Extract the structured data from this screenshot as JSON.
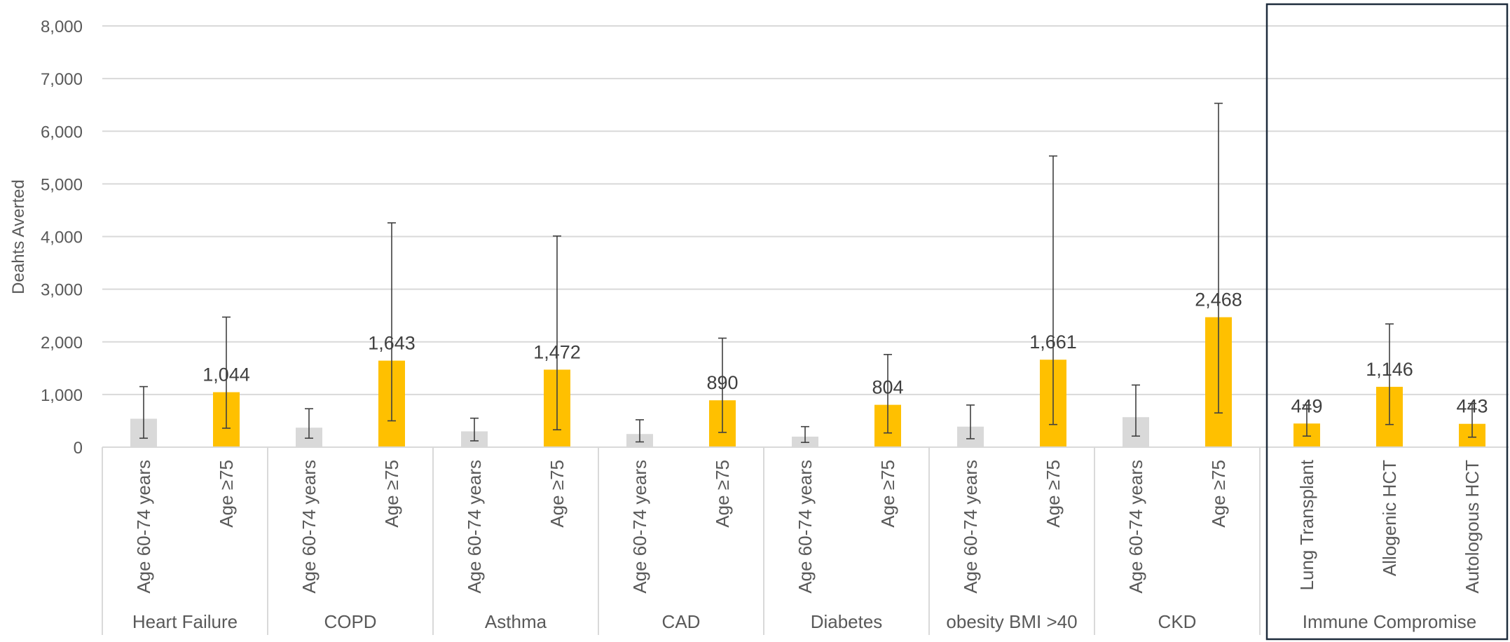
{
  "chart_data": {
    "type": "bar",
    "title": "",
    "ylabel": "Deahts Averted",
    "xlabel": "",
    "ylim": [
      0,
      8000
    ],
    "yticks": [
      0,
      1000,
      2000,
      3000,
      4000,
      5000,
      6000,
      7000,
      8000
    ],
    "ytick_labels": [
      "0",
      "1,000",
      "2,000",
      "3,000",
      "4,000",
      "5,000",
      "6,000",
      "7,000",
      "8,000"
    ],
    "grid": true,
    "legend": "none",
    "colors": {
      "age_60_74": "#d9d9d9",
      "age_75": "#ffc000",
      "highlight_box": "#1f2d3d"
    },
    "groups": [
      {
        "name": "Heart Failure",
        "highlighted": false,
        "bars": [
          {
            "label": "Age 60-74 years",
            "value": 540,
            "err_low": 170,
            "err_high": 1150,
            "color": "#d9d9d9",
            "data_label": ""
          },
          {
            "label": "Age ≥75",
            "value": 1044,
            "err_low": 360,
            "err_high": 2470,
            "color": "#ffc000",
            "data_label": "1,044"
          }
        ]
      },
      {
        "name": "COPD",
        "highlighted": false,
        "bars": [
          {
            "label": "Age 60-74 years",
            "value": 370,
            "err_low": 170,
            "err_high": 730,
            "color": "#d9d9d9",
            "data_label": ""
          },
          {
            "label": "Age ≥75",
            "value": 1643,
            "err_low": 500,
            "err_high": 4260,
            "color": "#ffc000",
            "data_label": "1,643"
          }
        ]
      },
      {
        "name": "Asthma",
        "highlighted": false,
        "bars": [
          {
            "label": "Age 60-74 years",
            "value": 300,
            "err_low": 120,
            "err_high": 550,
            "color": "#d9d9d9",
            "data_label": ""
          },
          {
            "label": "Age ≥75",
            "value": 1472,
            "err_low": 330,
            "err_high": 4010,
            "color": "#ffc000",
            "data_label": "1,472"
          }
        ]
      },
      {
        "name": "CAD",
        "highlighted": false,
        "bars": [
          {
            "label": "Age 60-74 years",
            "value": 250,
            "err_low": 100,
            "err_high": 520,
            "color": "#d9d9d9",
            "data_label": ""
          },
          {
            "label": "Age ≥75",
            "value": 890,
            "err_low": 280,
            "err_high": 2070,
            "color": "#ffc000",
            "data_label": "890"
          }
        ]
      },
      {
        "name": "Diabetes",
        "highlighted": false,
        "bars": [
          {
            "label": "Age 60-74 years",
            "value": 200,
            "err_low": 90,
            "err_high": 390,
            "color": "#d9d9d9",
            "data_label": ""
          },
          {
            "label": "Age ≥75",
            "value": 804,
            "err_low": 270,
            "err_high": 1760,
            "color": "#ffc000",
            "data_label": "804"
          }
        ]
      },
      {
        "name": "obesity BMI >40",
        "highlighted": false,
        "bars": [
          {
            "label": "Age 60-74 years",
            "value": 390,
            "err_low": 160,
            "err_high": 800,
            "color": "#d9d9d9",
            "data_label": ""
          },
          {
            "label": "Age ≥75",
            "value": 1661,
            "err_low": 430,
            "err_high": 5530,
            "color": "#ffc000",
            "data_label": "1,661"
          }
        ]
      },
      {
        "name": "CKD",
        "highlighted": false,
        "bars": [
          {
            "label": "Age 60-74 years",
            "value": 570,
            "err_low": 210,
            "err_high": 1180,
            "color": "#d9d9d9",
            "data_label": ""
          },
          {
            "label": "Age ≥75",
            "value": 2468,
            "err_low": 650,
            "err_high": 6530,
            "color": "#ffc000",
            "data_label": "2,468"
          }
        ]
      },
      {
        "name": "Immune Compromise",
        "highlighted": true,
        "bars": [
          {
            "label": "Lung Transplant",
            "value": 449,
            "err_low": 210,
            "err_high": 800,
            "color": "#ffc000",
            "data_label": "449"
          },
          {
            "label": "Allogenic HCT",
            "value": 1146,
            "err_low": 430,
            "err_high": 2340,
            "color": "#ffc000",
            "data_label": "1,146"
          },
          {
            "label": "Autologous HCT",
            "value": 443,
            "err_low": 190,
            "err_high": 830,
            "color": "#ffc000",
            "data_label": "443"
          }
        ]
      }
    ]
  }
}
